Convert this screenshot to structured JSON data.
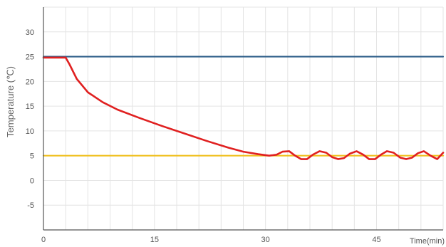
{
  "chart_data": {
    "type": "line",
    "title": "",
    "xlabel": "Time(min)",
    "ylabel": "Temperature (℃)",
    "xlim": [
      0,
      54
    ],
    "ylim": [
      -10,
      35
    ],
    "grid": true,
    "x_ticks": [
      {
        "value": 0,
        "label": "0"
      },
      {
        "value": 15,
        "label": "15"
      },
      {
        "value": 30,
        "label": "30"
      },
      {
        "value": 45,
        "label": "45"
      }
    ],
    "y_ticks": [
      {
        "value": 30,
        "label": "30"
      },
      {
        "value": 25,
        "label": "25"
      },
      {
        "value": 20,
        "label": "20"
      },
      {
        "value": 15,
        "label": "15"
      },
      {
        "value": 10,
        "label": "10"
      },
      {
        "value": 5,
        "label": "5"
      },
      {
        "value": 0,
        "label": "0"
      },
      {
        "value": -5,
        "label": "-5"
      }
    ],
    "series": [
      {
        "color": "#2f5f8a",
        "x": [
          0,
          54
        ],
        "y": [
          25,
          25
        ]
      },
      {
        "color": "#f0c020",
        "x": [
          0,
          54
        ],
        "y": [
          5,
          5
        ]
      },
      {
        "color": "#e02020",
        "x": [
          0,
          3,
          3.5,
          4.5,
          6,
          8,
          10,
          13,
          16,
          19,
          22,
          25,
          27,
          29,
          30.5,
          31.5,
          32.3,
          33.2,
          34,
          34.8,
          35.6,
          36.4,
          37.3,
          38.2,
          39,
          39.8,
          40.6,
          41.4,
          42.3,
          43.2,
          44,
          44.8,
          45.6,
          46.4,
          47.3,
          48.2,
          49,
          49.8,
          50.6,
          51.4,
          52.3,
          53.2,
          54
        ],
        "y": [
          24.8,
          24.8,
          23.5,
          20.5,
          17.8,
          15.8,
          14.3,
          12.6,
          11.0,
          9.5,
          8.0,
          6.6,
          5.8,
          5.3,
          5.0,
          5.2,
          5.8,
          5.9,
          5.0,
          4.3,
          4.3,
          5.2,
          5.9,
          5.6,
          4.7,
          4.3,
          4.5,
          5.4,
          5.9,
          5.2,
          4.3,
          4.3,
          5.2,
          5.9,
          5.6,
          4.6,
          4.3,
          4.6,
          5.5,
          5.9,
          5.0,
          4.3,
          5.6
        ]
      }
    ]
  }
}
